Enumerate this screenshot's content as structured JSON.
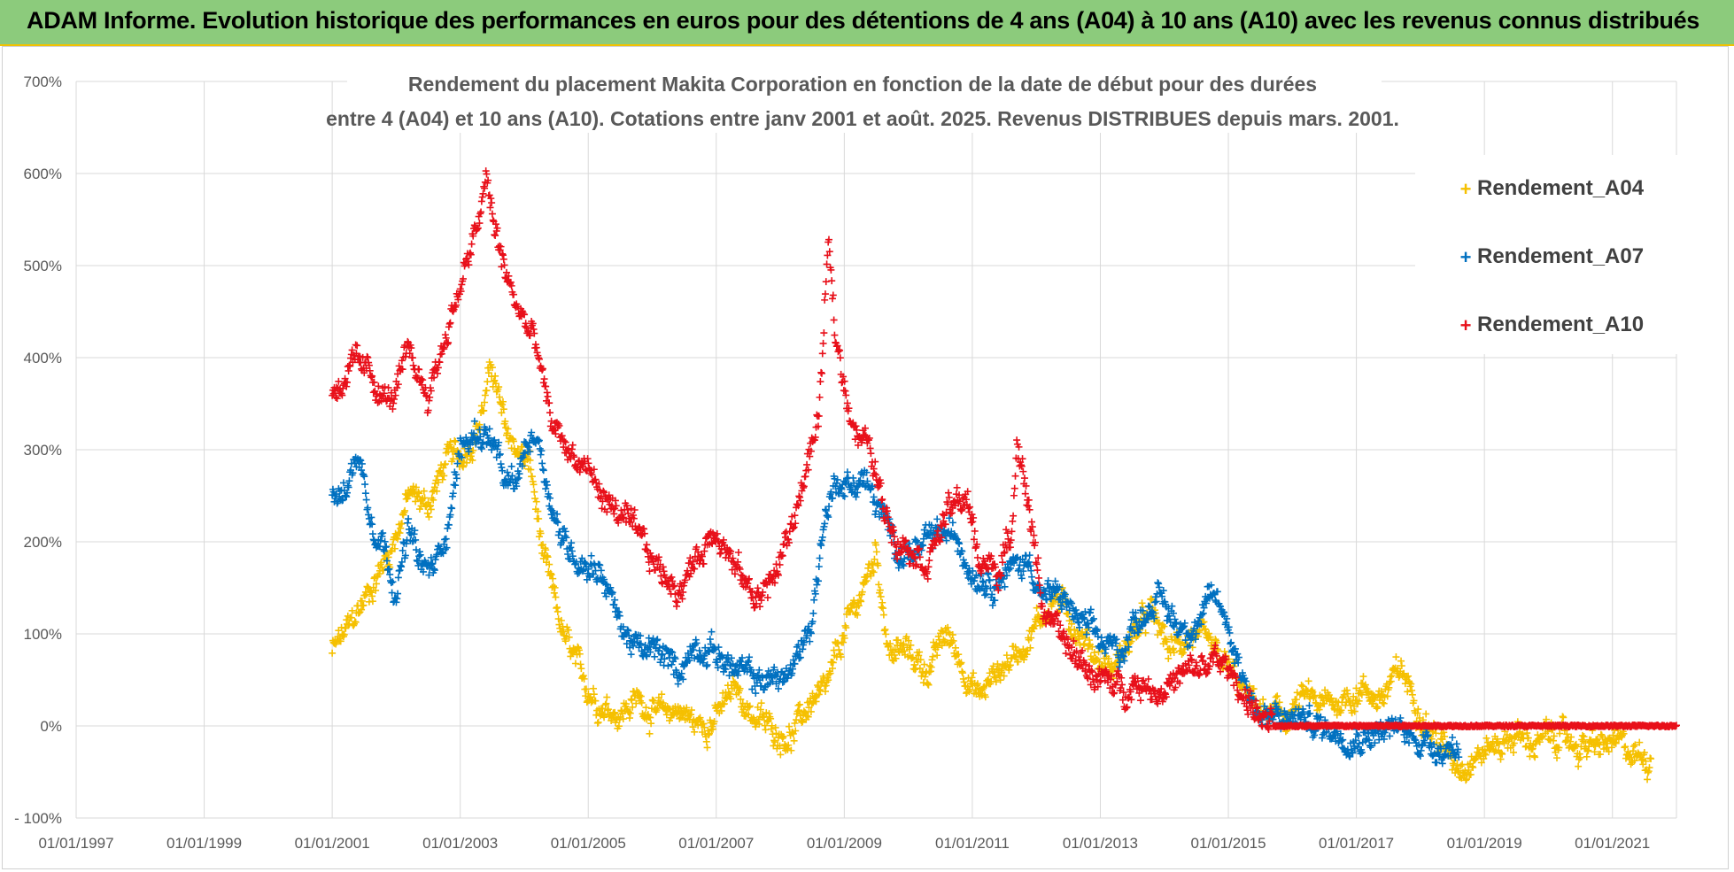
{
  "banner": {
    "title": "ADAM Informe. Evolution historique des performances en euros pour des détentions de 4 ans (A04) à 10 ans (A10) avec les revenus connus distribués"
  },
  "colors": {
    "banner_bg": "#8ccb7c",
    "A04": "#f5c000",
    "A07": "#0070c0",
    "A10": "#e8101a",
    "grid": "#d9d9d9"
  },
  "chart_data": {
    "type": "scatter",
    "title_lines": [
      "Rendement du placement Makita Corporation en fonction de la date de début pour des durées",
      "entre 4 (A04) et 10 ans (A10). Cotations entre janv 2001 et août. 2025. Revenus DISTRIBUES depuis mars. 2001."
    ],
    "y_ticks": [
      "700%",
      "600%",
      "500%",
      "400%",
      "300%",
      "200%",
      "100%",
      "0%",
      "- 100%"
    ],
    "ylim": [
      -100,
      700
    ],
    "x_ticks": [
      "01/01/1997",
      "01/01/1999",
      "01/01/2001",
      "01/01/2003",
      "01/01/2005",
      "01/01/2007",
      "01/01/2009",
      "01/01/2011",
      "01/01/2013",
      "01/01/2015",
      "01/01/2017",
      "01/01/2019",
      "01/01/2021"
    ],
    "xlim": [
      1997.0,
      2022.0
    ],
    "grid": true,
    "legend_position": "top-right",
    "marker": "+",
    "series": [
      {
        "name": "Rendement_A04",
        "color": "#f5c000",
        "x_start": 2001.0,
        "x_end": 2021.6,
        "points": [
          [
            2001.0,
            80
          ],
          [
            2001.3,
            110
          ],
          [
            2001.6,
            150
          ],
          [
            2001.9,
            190
          ],
          [
            2002.2,
            250
          ],
          [
            2002.5,
            240
          ],
          [
            2002.8,
            290
          ],
          [
            2003.0,
            290
          ],
          [
            2003.3,
            330
          ],
          [
            2003.5,
            390
          ],
          [
            2003.7,
            320
          ],
          [
            2003.9,
            300
          ],
          [
            2004.1,
            280
          ],
          [
            2004.3,
            180
          ],
          [
            2004.6,
            100
          ],
          [
            2004.9,
            50
          ],
          [
            2005.2,
            25
          ],
          [
            2005.5,
            15
          ],
          [
            2005.8,
            30
          ],
          [
            2006.1,
            10
          ],
          [
            2006.4,
            20
          ],
          [
            2006.7,
            0
          ],
          [
            2007.0,
            10
          ],
          [
            2007.3,
            40
          ],
          [
            2007.6,
            10
          ],
          [
            2007.9,
            -5
          ],
          [
            2008.2,
            -10
          ],
          [
            2008.5,
            30
          ],
          [
            2008.7,
            30
          ],
          [
            2009.0,
            100
          ],
          [
            2009.3,
            150
          ],
          [
            2009.5,
            190
          ],
          [
            2009.7,
            80
          ],
          [
            2010.0,
            80
          ],
          [
            2010.3,
            60
          ],
          [
            2010.6,
            100
          ],
          [
            2010.9,
            60
          ],
          [
            2011.1,
            30
          ],
          [
            2011.4,
            60
          ],
          [
            2011.7,
            80
          ],
          [
            2012.0,
            110
          ],
          [
            2012.3,
            140
          ],
          [
            2012.6,
            110
          ],
          [
            2012.9,
            80
          ],
          [
            2013.2,
            60
          ],
          [
            2013.5,
            100
          ],
          [
            2013.8,
            120
          ],
          [
            2014.1,
            80
          ],
          [
            2014.4,
            100
          ],
          [
            2014.7,
            80
          ],
          [
            2015.0,
            60
          ],
          [
            2015.3,
            30
          ],
          [
            2015.6,
            10
          ],
          [
            2015.9,
            10
          ],
          [
            2016.2,
            30
          ],
          [
            2016.5,
            20
          ],
          [
            2016.8,
            30
          ],
          [
            2017.1,
            40
          ],
          [
            2017.4,
            30
          ],
          [
            2017.7,
            60
          ],
          [
            2018.0,
            20
          ],
          [
            2018.3,
            -20
          ],
          [
            2018.6,
            -40
          ],
          [
            2018.9,
            -30
          ],
          [
            2019.2,
            -20
          ],
          [
            2019.5,
            -10
          ],
          [
            2019.8,
            -20
          ],
          [
            2020.1,
            -10
          ],
          [
            2020.4,
            -20
          ],
          [
            2020.7,
            -25
          ],
          [
            2021.0,
            -20
          ],
          [
            2021.3,
            -30
          ],
          [
            2021.6,
            -35
          ]
        ]
      },
      {
        "name": "Rendement_A07",
        "color": "#0070c0",
        "x_start": 2001.0,
        "x_end": 2018.6,
        "points": [
          [
            2001.0,
            260
          ],
          [
            2001.2,
            250
          ],
          [
            2001.4,
            300
          ],
          [
            2001.6,
            230
          ],
          [
            2001.8,
            200
          ],
          [
            2002.0,
            150
          ],
          [
            2002.2,
            210
          ],
          [
            2002.4,
            170
          ],
          [
            2002.6,
            170
          ],
          [
            2002.8,
            220
          ],
          [
            2003.0,
            300
          ],
          [
            2003.3,
            320
          ],
          [
            2003.5,
            310
          ],
          [
            2003.7,
            260
          ],
          [
            2003.9,
            260
          ],
          [
            2004.0,
            300
          ],
          [
            2004.2,
            320
          ],
          [
            2004.4,
            250
          ],
          [
            2004.6,
            200
          ],
          [
            2004.9,
            180
          ],
          [
            2005.2,
            170
          ],
          [
            2005.5,
            110
          ],
          [
            2005.8,
            80
          ],
          [
            2006.1,
            80
          ],
          [
            2006.4,
            60
          ],
          [
            2006.7,
            90
          ],
          [
            2007.0,
            80
          ],
          [
            2007.3,
            60
          ],
          [
            2007.6,
            50
          ],
          [
            2007.9,
            50
          ],
          [
            2008.2,
            60
          ],
          [
            2008.5,
            120
          ],
          [
            2008.7,
            230
          ],
          [
            2008.9,
            270
          ],
          [
            2009.1,
            260
          ],
          [
            2009.3,
            270
          ],
          [
            2009.5,
            240
          ],
          [
            2009.7,
            210
          ],
          [
            2009.9,
            190
          ],
          [
            2010.2,
            190
          ],
          [
            2010.5,
            210
          ],
          [
            2010.8,
            200
          ],
          [
            2011.0,
            170
          ],
          [
            2011.3,
            160
          ],
          [
            2011.6,
            170
          ],
          [
            2011.9,
            180
          ],
          [
            2012.1,
            140
          ],
          [
            2012.4,
            140
          ],
          [
            2012.7,
            110
          ],
          [
            2013.0,
            90
          ],
          [
            2013.3,
            80
          ],
          [
            2013.6,
            120
          ],
          [
            2013.9,
            140
          ],
          [
            2014.2,
            110
          ],
          [
            2014.5,
            110
          ],
          [
            2014.8,
            140
          ],
          [
            2015.0,
            110
          ],
          [
            2015.2,
            60
          ],
          [
            2015.5,
            10
          ],
          [
            2015.8,
            5
          ],
          [
            2016.1,
            10
          ],
          [
            2016.4,
            0
          ],
          [
            2016.7,
            -5
          ],
          [
            2017.0,
            -10
          ],
          [
            2017.3,
            -5
          ],
          [
            2017.6,
            -5
          ],
          [
            2017.9,
            -10
          ],
          [
            2018.2,
            -20
          ],
          [
            2018.6,
            -25
          ]
        ]
      },
      {
        "name": "Rendement_A10",
        "color": "#e8101a",
        "x_start": 2001.0,
        "x_end": 2022.0,
        "points": [
          [
            2001.0,
            360
          ],
          [
            2001.3,
            390
          ],
          [
            2001.6,
            380
          ],
          [
            2001.9,
            350
          ],
          [
            2002.2,
            400
          ],
          [
            2002.5,
            360
          ],
          [
            2002.8,
            430
          ],
          [
            2003.0,
            480
          ],
          [
            2003.2,
            520
          ],
          [
            2003.4,
            590
          ],
          [
            2003.6,
            520
          ],
          [
            2003.8,
            470
          ],
          [
            2004.0,
            440
          ],
          [
            2004.2,
            410
          ],
          [
            2004.4,
            330
          ],
          [
            2004.6,
            310
          ],
          [
            2004.8,
            290
          ],
          [
            2005.0,
            280
          ],
          [
            2005.2,
            250
          ],
          [
            2005.5,
            230
          ],
          [
            2005.8,
            200
          ],
          [
            2006.1,
            170
          ],
          [
            2006.4,
            150
          ],
          [
            2006.7,
            180
          ],
          [
            2007.0,
            220
          ],
          [
            2007.3,
            170
          ],
          [
            2007.6,
            140
          ],
          [
            2007.9,
            160
          ],
          [
            2008.2,
            220
          ],
          [
            2008.4,
            280
          ],
          [
            2008.6,
            330
          ],
          [
            2008.75,
            520
          ],
          [
            2008.85,
            430
          ],
          [
            2009.0,
            370
          ],
          [
            2009.2,
            320
          ],
          [
            2009.4,
            300
          ],
          [
            2009.6,
            240
          ],
          [
            2009.8,
            210
          ],
          [
            2010.0,
            200
          ],
          [
            2010.3,
            180
          ],
          [
            2010.6,
            230
          ],
          [
            2010.9,
            250
          ],
          [
            2011.1,
            180
          ],
          [
            2011.4,
            170
          ],
          [
            2011.6,
            200
          ],
          [
            2011.7,
            320
          ],
          [
            2011.9,
            230
          ],
          [
            2012.1,
            130
          ],
          [
            2012.4,
            90
          ],
          [
            2012.7,
            70
          ],
          [
            2013.0,
            50
          ],
          [
            2013.3,
            40
          ],
          [
            2013.6,
            50
          ],
          [
            2013.9,
            40
          ],
          [
            2014.2,
            50
          ],
          [
            2014.5,
            60
          ],
          [
            2014.8,
            70
          ],
          [
            2015.0,
            60
          ],
          [
            2015.3,
            30
          ],
          [
            2015.6,
            0
          ],
          [
            2016.0,
            0
          ],
          [
            2017.0,
            0
          ],
          [
            2018.0,
            0
          ],
          [
            2019.0,
            0
          ],
          [
            2020.0,
            0
          ],
          [
            2021.0,
            0
          ],
          [
            2022.0,
            0
          ]
        ]
      }
    ]
  }
}
